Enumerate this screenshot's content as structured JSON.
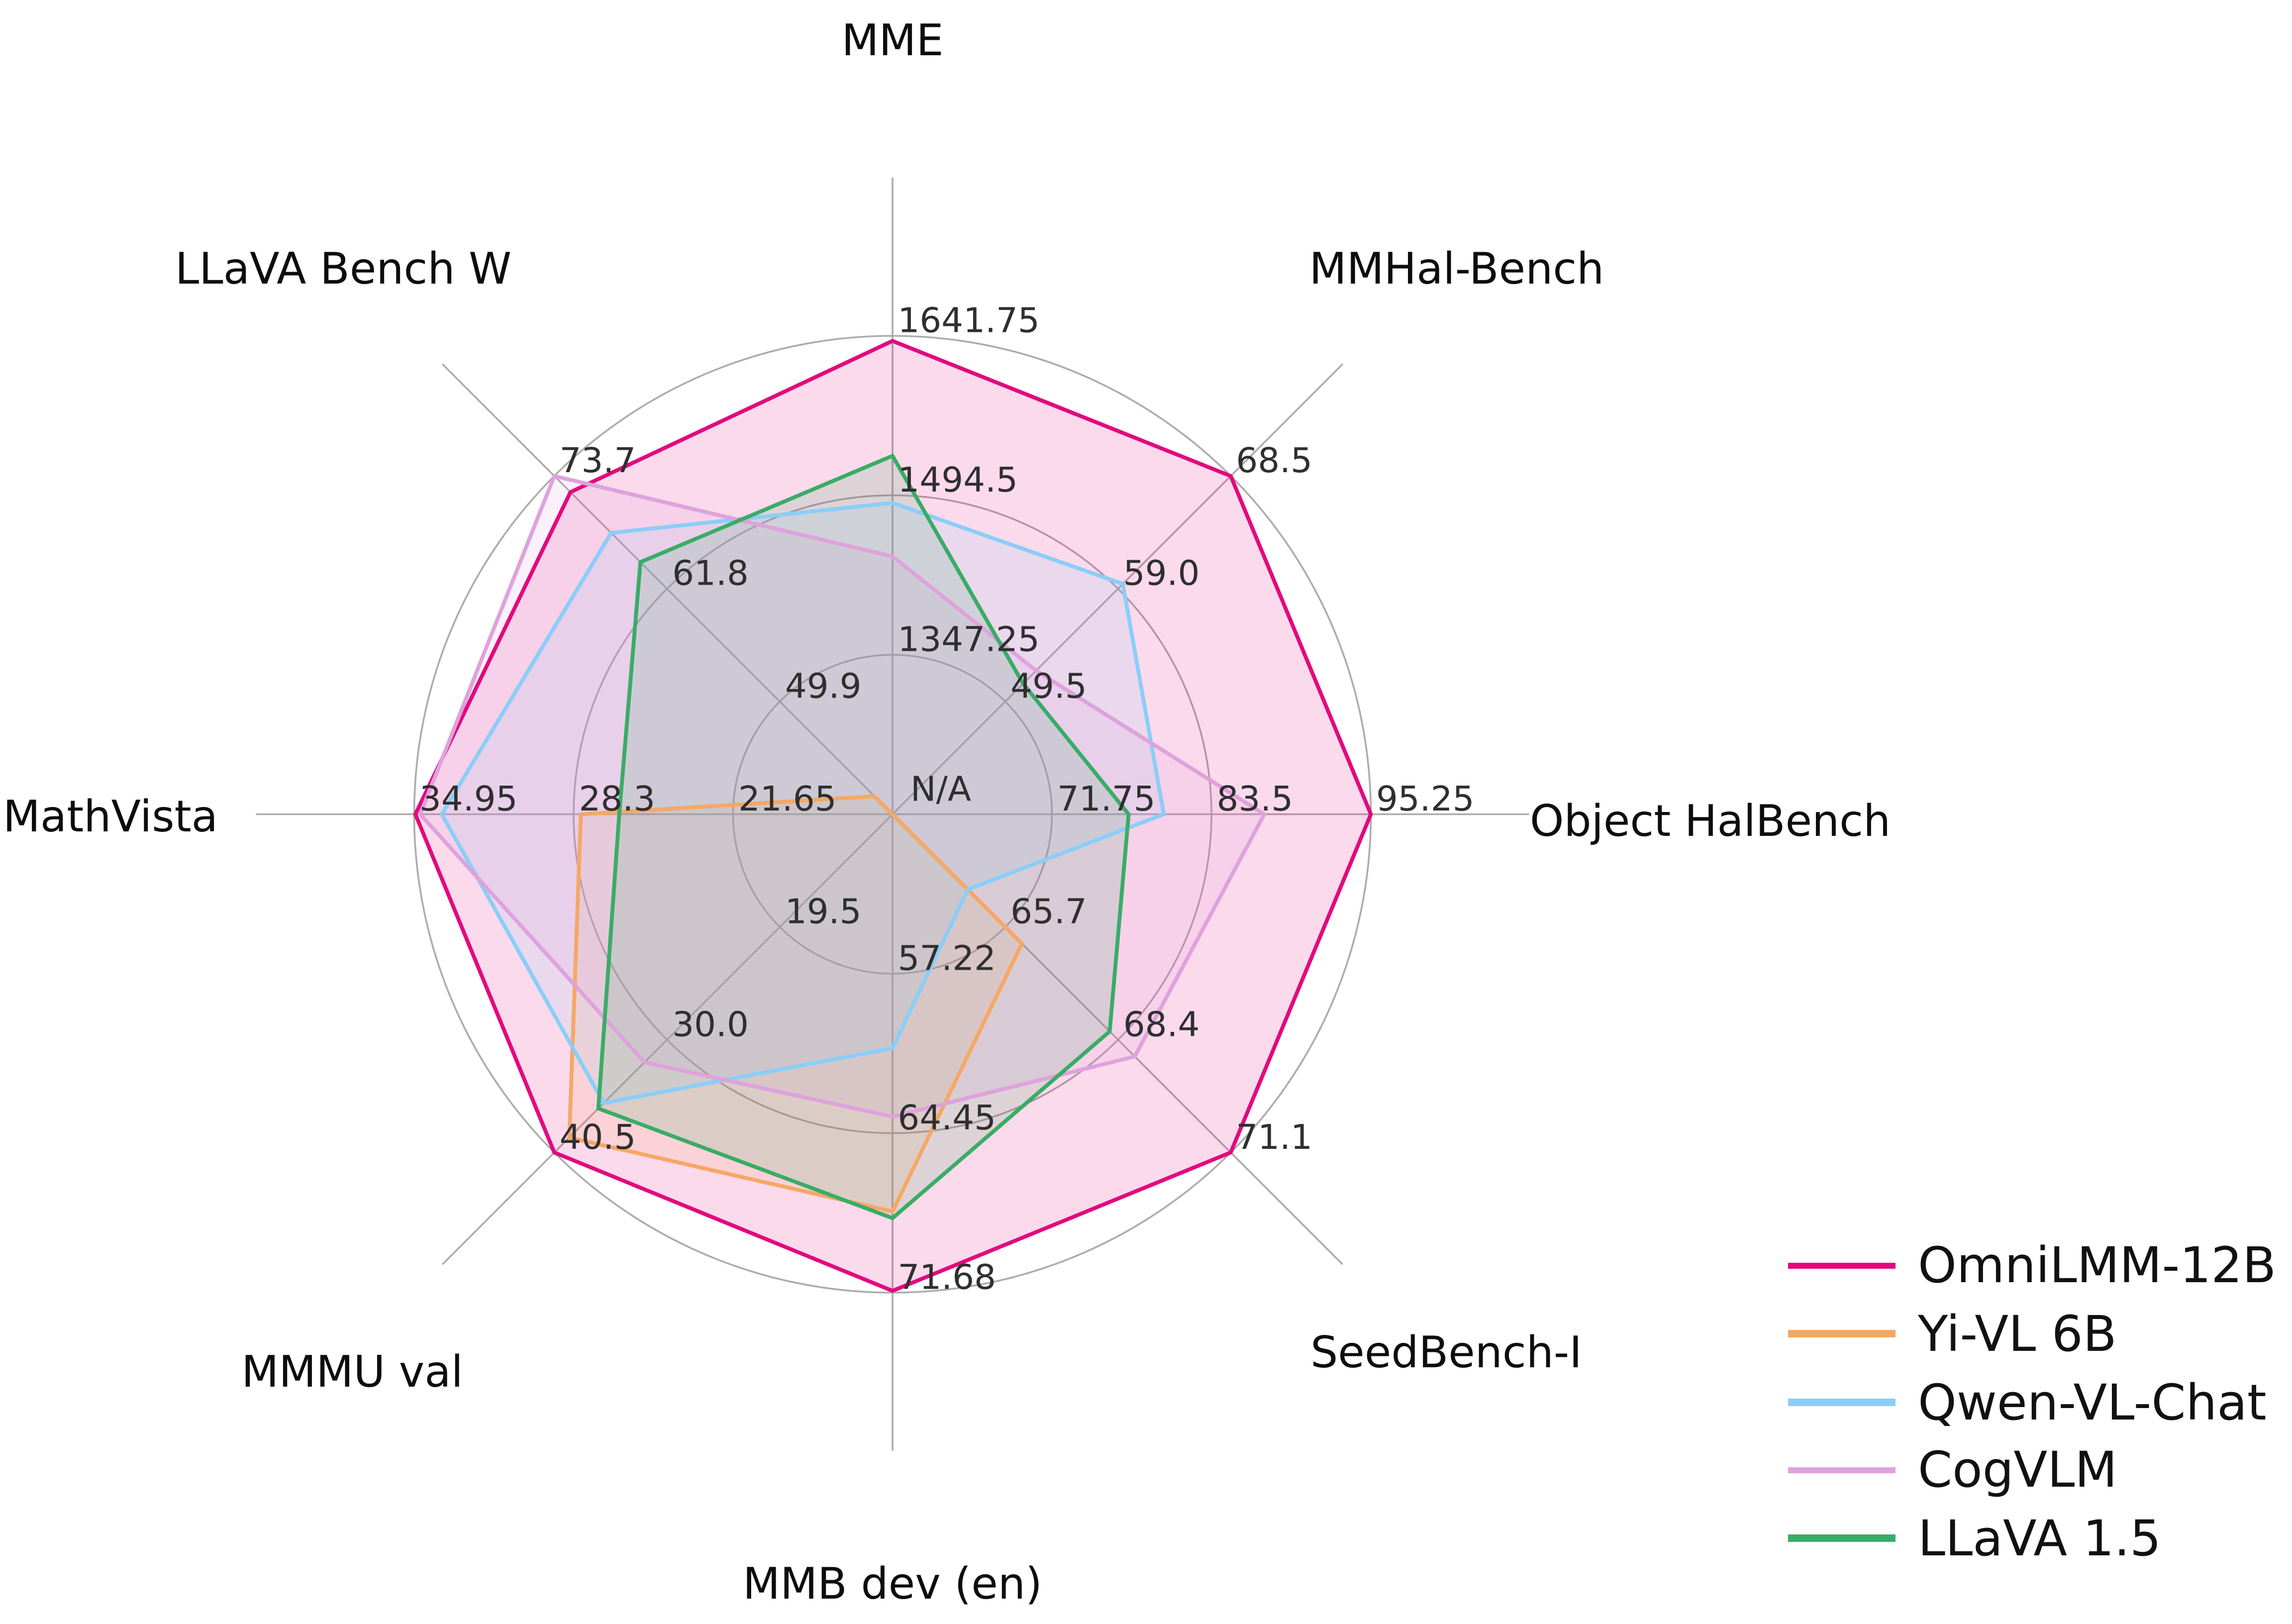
{
  "chart_data": {
    "type": "radar",
    "title": "",
    "center_label": "N/A",
    "grid": true,
    "legend_position": "lower right",
    "n_rings": 3,
    "axes": [
      {
        "label": "MME",
        "min": 1200,
        "max": 1641.75,
        "ticks": [
          "1347.25",
          "1494.5",
          "1641.75"
        ]
      },
      {
        "label": "MMHal-Bench",
        "min": 40,
        "max": 68.5,
        "ticks": [
          "49.5",
          "59.0",
          "68.5"
        ]
      },
      {
        "label": "Object HalBench",
        "min": 60,
        "max": 95.25,
        "ticks": [
          "71.75",
          "83.5",
          "95.25"
        ]
      },
      {
        "label": "SeedBench-I",
        "min": 63,
        "max": 71.1,
        "ticks": [
          "65.7",
          "68.4",
          "71.1"
        ]
      },
      {
        "label": "MMB dev (en)",
        "min": 49.99,
        "max": 71.68,
        "ticks": [
          "57.22",
          "64.45",
          "71.68"
        ]
      },
      {
        "label": "MMMU val",
        "min": 9,
        "max": 40.5,
        "ticks": [
          "19.5",
          "30.0",
          "40.5"
        ]
      },
      {
        "label": "MathVista",
        "min": 15,
        "max": 34.95,
        "ticks": [
          "21.65",
          "28.3",
          "34.95"
        ]
      },
      {
        "label": "LLaVA Bench W",
        "min": 38,
        "max": 73.7,
        "ticks": [
          "49.9",
          "61.8",
          "73.7"
        ]
      }
    ],
    "series": [
      {
        "name": "OmniLMM-12B",
        "color": "#E10A7D",
        "values": [
          1637,
          68.5,
          95.25,
          71.1,
          71.6,
          40.5,
          34.9,
          72.0
        ]
      },
      {
        "name": "Yi-VL 6B",
        "color": "#F5A864",
        "values": [
          null,
          null,
          null,
          66.1,
          68.0,
          39.1,
          28.0,
          39.9
        ]
      },
      {
        "name": "Qwen-VL-Chat",
        "color": "#8ACEF7",
        "values": [
          1487.5,
          59.4,
          80.0,
          64.8,
          60.6,
          35.9,
          33.8,
          67.7
        ]
      },
      {
        "name": "CogVLM",
        "color": "#DEA2DC",
        "values": [
          1438,
          52.1,
          87.4,
          68.8,
          63.7,
          32.1,
          34.7,
          73.7
        ]
      },
      {
        "name": "LLaVA 1.5",
        "color": "#39AC66",
        "values": [
          1531,
          51.0,
          77.4,
          68.2,
          68.3,
          36.4,
          26.4,
          64.6
        ]
      }
    ],
    "style": {
      "fill_alpha": 0.15,
      "line_width": 2.6,
      "grid_color": "#ACACAC",
      "grid_width": 1.2,
      "tick_color": "#2F2F2F",
      "tick_font_size": 23,
      "title_color": "#0D0D0D",
      "title_font_size": 29,
      "background": "#FFFFFF"
    }
  }
}
